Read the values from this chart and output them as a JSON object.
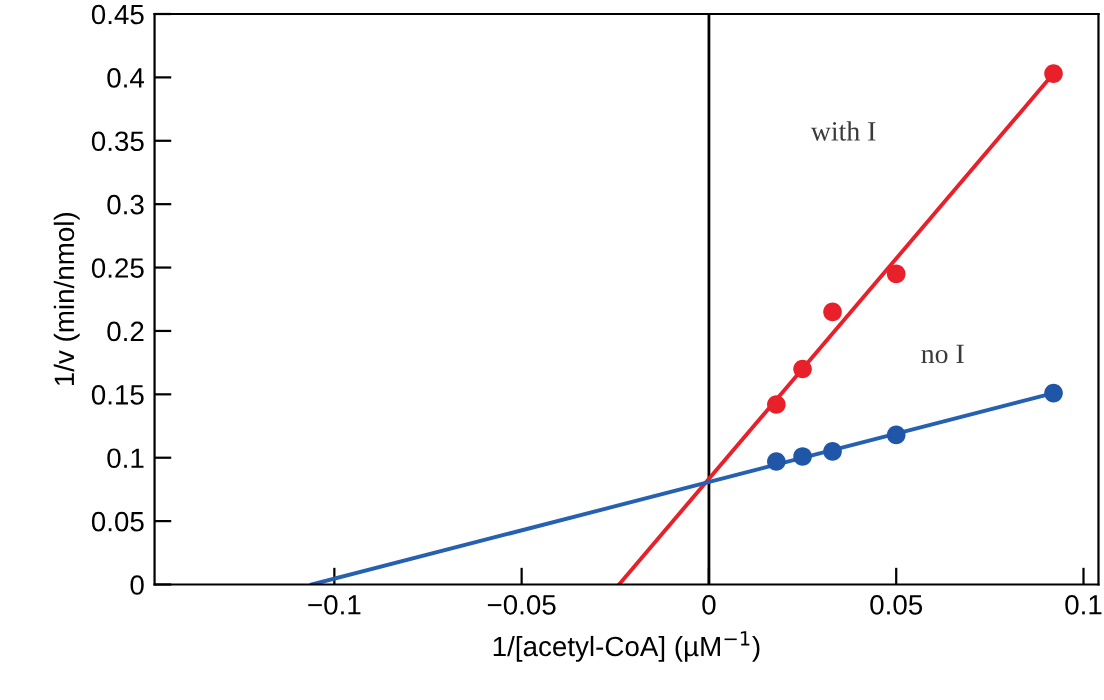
{
  "chart_data": {
    "type": "scatter",
    "xlabel": "1/[acetyl-CoA] (µM$^{−1}$)",
    "ylabel": "1/v (min/nmol)",
    "xlim": [
      -0.148,
      0.104
    ],
    "ylim": [
      0,
      0.45
    ],
    "xticks": [
      {
        "value": -0.1,
        "label": "−0.1"
      },
      {
        "value": -0.05,
        "label": "−0.05"
      },
      0,
      0.05,
      0.1
    ],
    "yticks": [
      0,
      0.05,
      0.1,
      0.15,
      0.2,
      0.25,
      0.3,
      0.35,
      0.4,
      0.45
    ],
    "grid": false,
    "legend": false,
    "series": [
      {
        "type": "line",
        "marker": "none",
        "color": "#e8202a",
        "x": [
          -0.024,
          0.092
        ],
        "values": [
          0,
          0.403
        ]
      },
      {
        "type": "line",
        "marker": "none",
        "color": "#2660b0",
        "x": [
          -0.106,
          0.092
        ],
        "values": [
          0,
          0.151
        ]
      },
      {
        "marker": "circle",
        "color": "#e8202a",
        "x": [
          0.018,
          0.025,
          0.033,
          0.05,
          0.092
        ],
        "values": [
          0.142,
          0.17,
          0.215,
          0.245,
          0.403
        ]
      },
      {
        "marker": "circle",
        "color": "#1f56a8",
        "x": [
          0.018,
          0.025,
          0.033,
          0.05,
          0.092
        ],
        "values": [
          0.097,
          0.101,
          0.105,
          0.118,
          0.151
        ]
      }
    ],
    "ref_lines": [
      {
        "axis": "x",
        "value": 0,
        "color": "#000000"
      }
    ],
    "annotations": [
      "with I",
      "no I"
    ]
  }
}
